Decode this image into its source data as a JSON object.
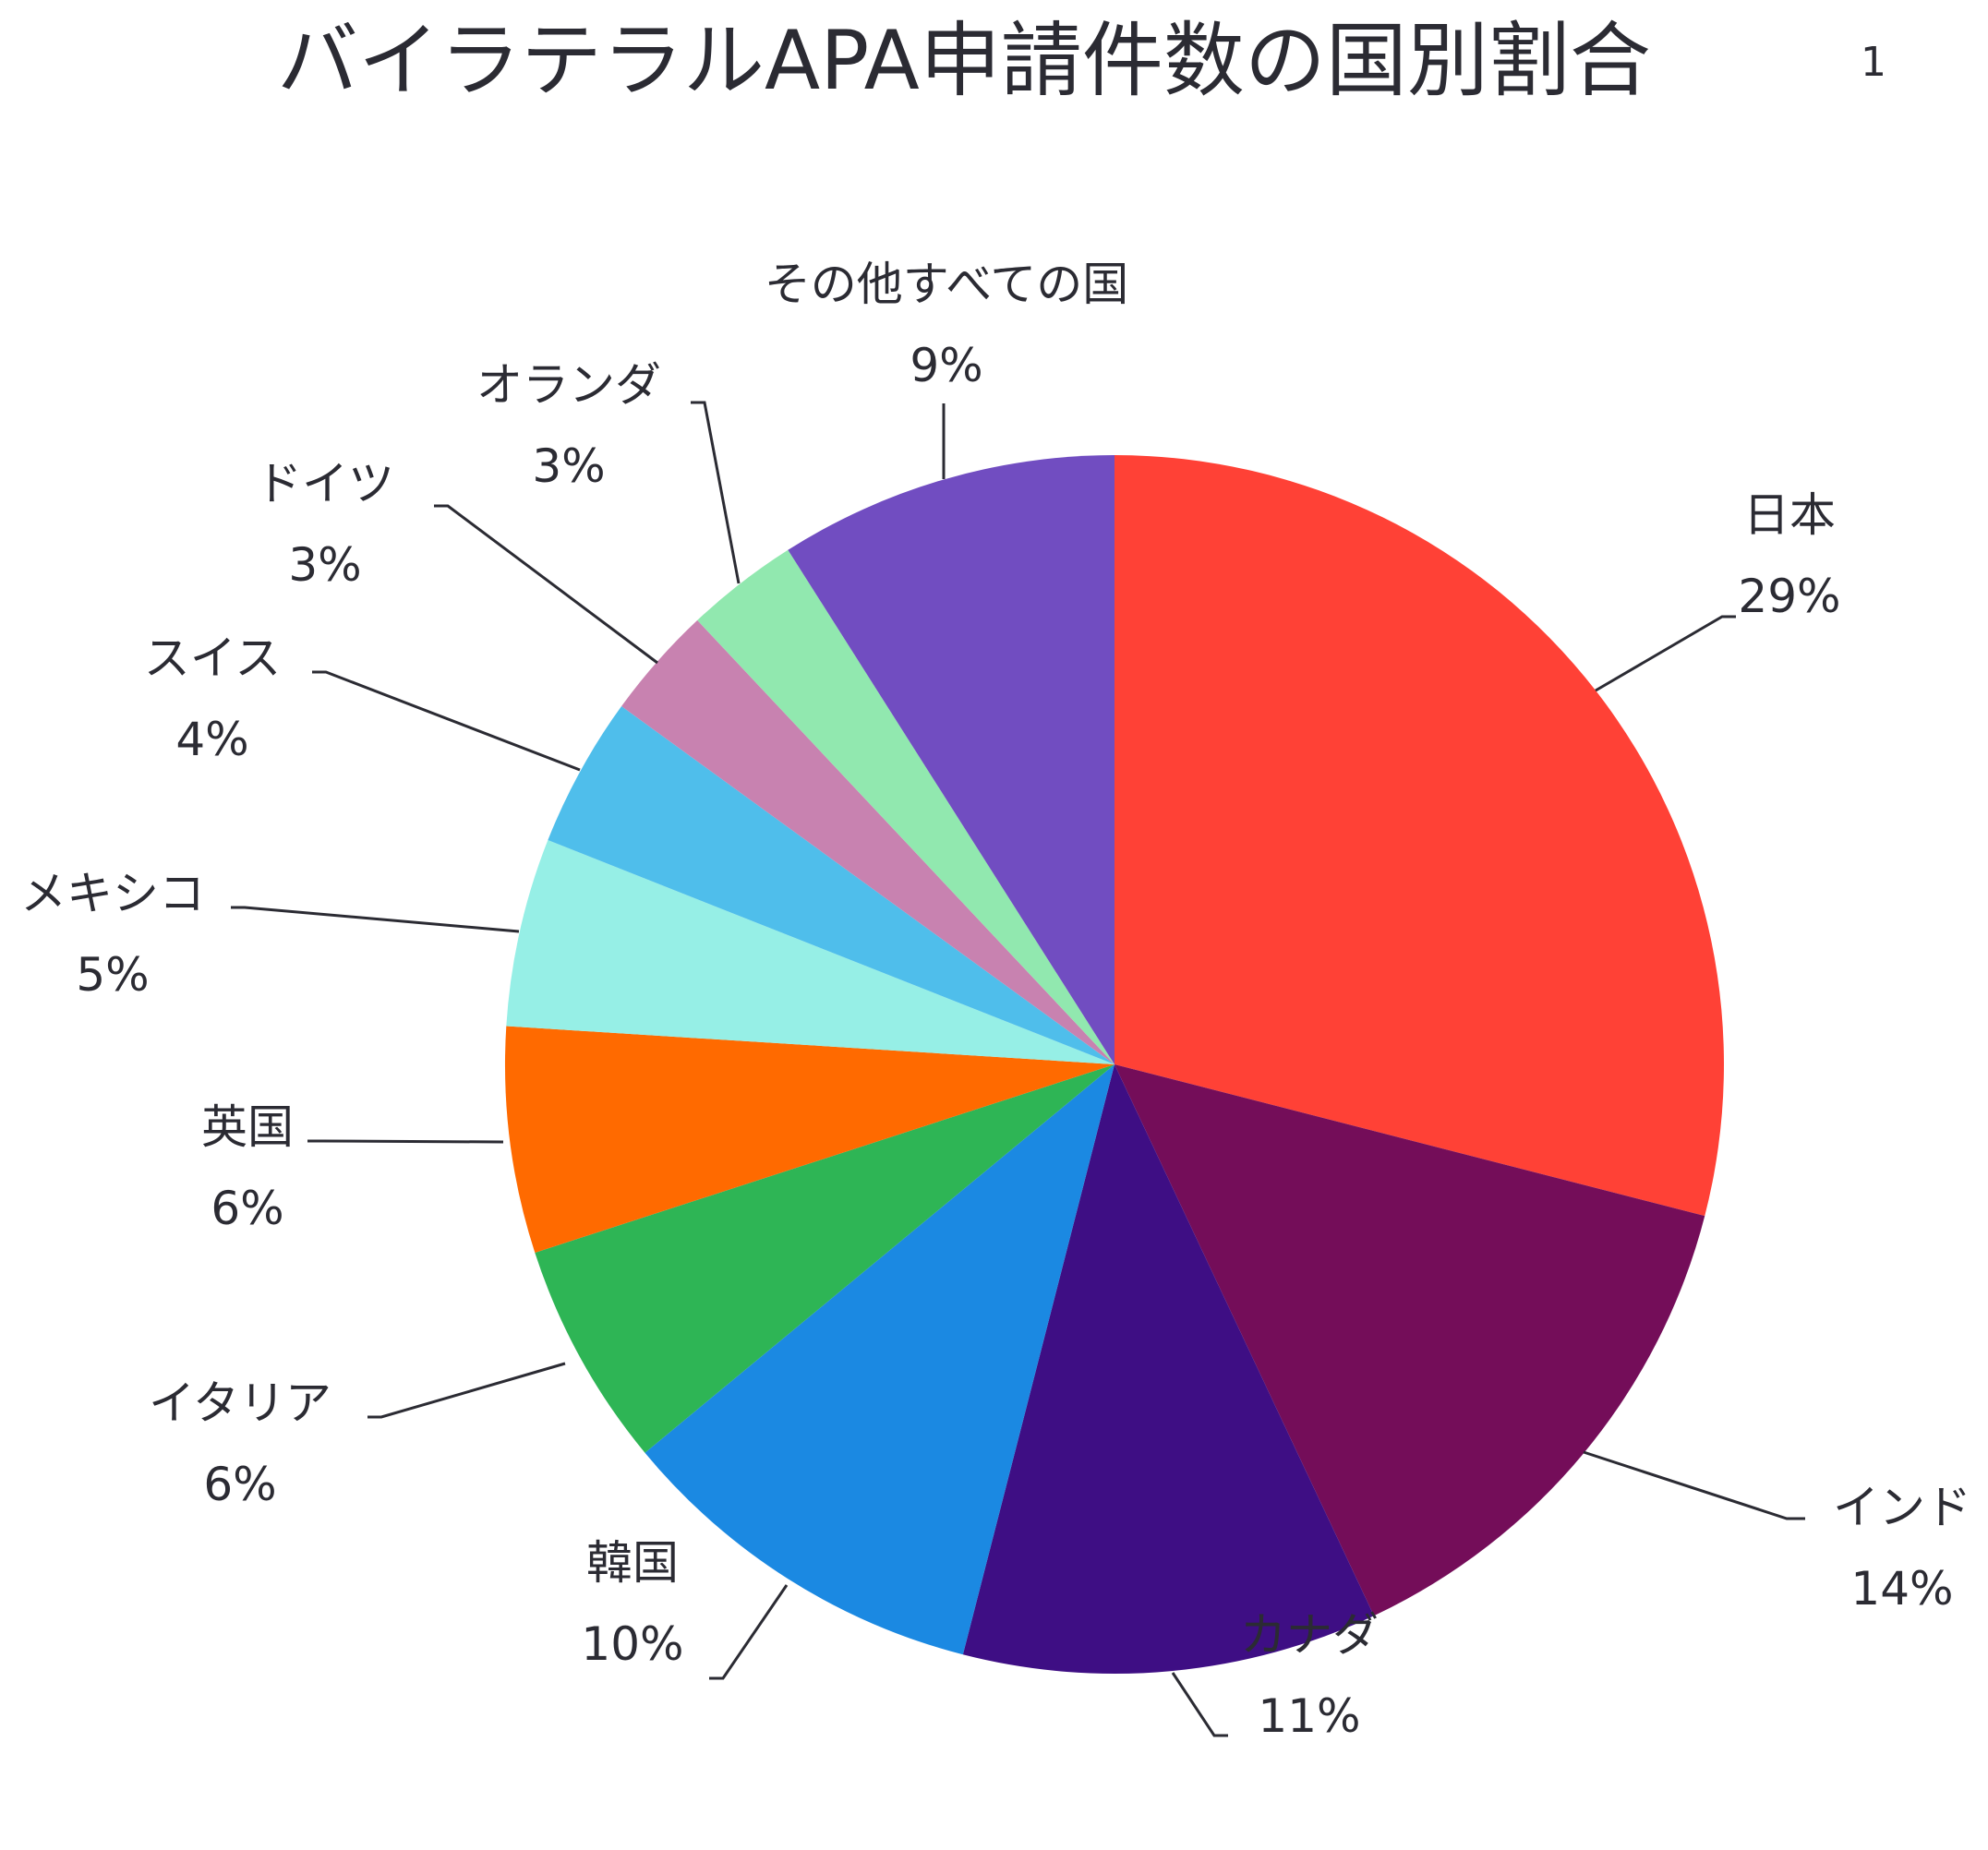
{
  "chart_data": {
    "type": "pie",
    "title": "バイラテラルAPA申請件数の国別割合",
    "title_superscript": "1",
    "unit": "%",
    "slices": [
      {
        "label": "日本",
        "value": 29,
        "color": "#FF4136"
      },
      {
        "label": "インド",
        "value": 14,
        "color": "#740D59"
      },
      {
        "label": "カナダ",
        "value": 11,
        "color": "#3E0E84"
      },
      {
        "label": "韓国",
        "value": 10,
        "color": "#1B89E2"
      },
      {
        "label": "イタリア",
        "value": 6,
        "color": "#2EB555"
      },
      {
        "label": "英国",
        "value": 6,
        "color": "#FF6A00"
      },
      {
        "label": "メキシコ",
        "value": 5,
        "color": "#96EFE6"
      },
      {
        "label": "スイス",
        "value": 4,
        "color": "#4FBEEB"
      },
      {
        "label": "ドイツ",
        "value": 3,
        "color": "#C882B0"
      },
      {
        "label": "オランダ",
        "value": 3,
        "color": "#91E8AF"
      },
      {
        "label": "その他すべての国",
        "value": 9,
        "color": "#714DC1"
      }
    ],
    "start_angle": "12 o'clock",
    "direction": "clockwise",
    "legend": "none",
    "data_labels": "outside with leader lines"
  }
}
